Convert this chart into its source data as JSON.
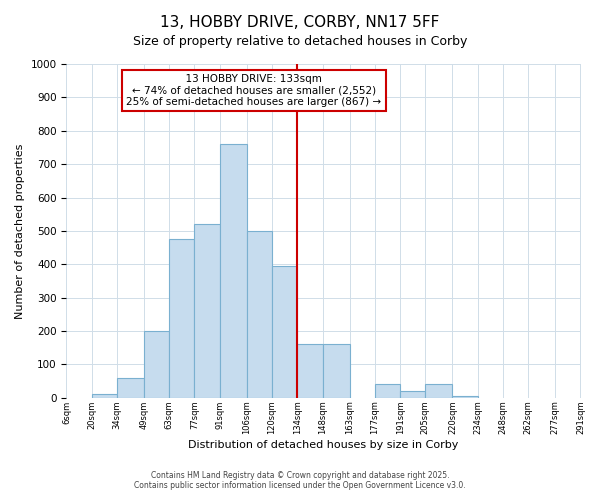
{
  "title": "13, HOBBY DRIVE, CORBY, NN17 5FF",
  "subtitle": "Size of property relative to detached houses in Corby",
  "xlabel": "Distribution of detached houses by size in Corby",
  "ylabel": "Number of detached properties",
  "bin_edges": [
    6,
    20,
    34,
    49,
    63,
    77,
    91,
    106,
    120,
    134,
    148,
    163,
    177,
    191,
    205,
    220,
    234,
    248,
    262,
    277,
    291
  ],
  "bin_labels": [
    "6sqm",
    "20sqm",
    "34sqm",
    "49sqm",
    "63sqm",
    "77sqm",
    "91sqm",
    "106sqm",
    "120sqm",
    "134sqm",
    "148sqm",
    "163sqm",
    "177sqm",
    "191sqm",
    "205sqm",
    "220sqm",
    "234sqm",
    "248sqm",
    "262sqm",
    "277sqm",
    "291sqm"
  ],
  "counts": [
    0,
    10,
    60,
    200,
    475,
    520,
    760,
    500,
    395,
    160,
    160,
    0,
    40,
    20,
    40,
    5,
    0,
    0,
    0,
    0
  ],
  "bar_color": "#c6dcee",
  "bar_edge_color": "#7ab0d0",
  "vline_x": 134,
  "vline_color": "#cc0000",
  "ylim": [
    0,
    1000
  ],
  "yticks": [
    0,
    100,
    200,
    300,
    400,
    500,
    600,
    700,
    800,
    900,
    1000
  ],
  "annotation_title": "13 HOBBY DRIVE: 133sqm",
  "annotation_line1": "← 74% of detached houses are smaller (2,552)",
  "annotation_line2": "25% of semi-detached houses are larger (867) →",
  "annotation_box_color": "#ffffff",
  "annotation_box_edge": "#cc0000",
  "footer_line1": "Contains HM Land Registry data © Crown copyright and database right 2025.",
  "footer_line2": "Contains public sector information licensed under the Open Government Licence v3.0.",
  "bg_color": "#ffffff",
  "grid_color": "#d0dde8"
}
